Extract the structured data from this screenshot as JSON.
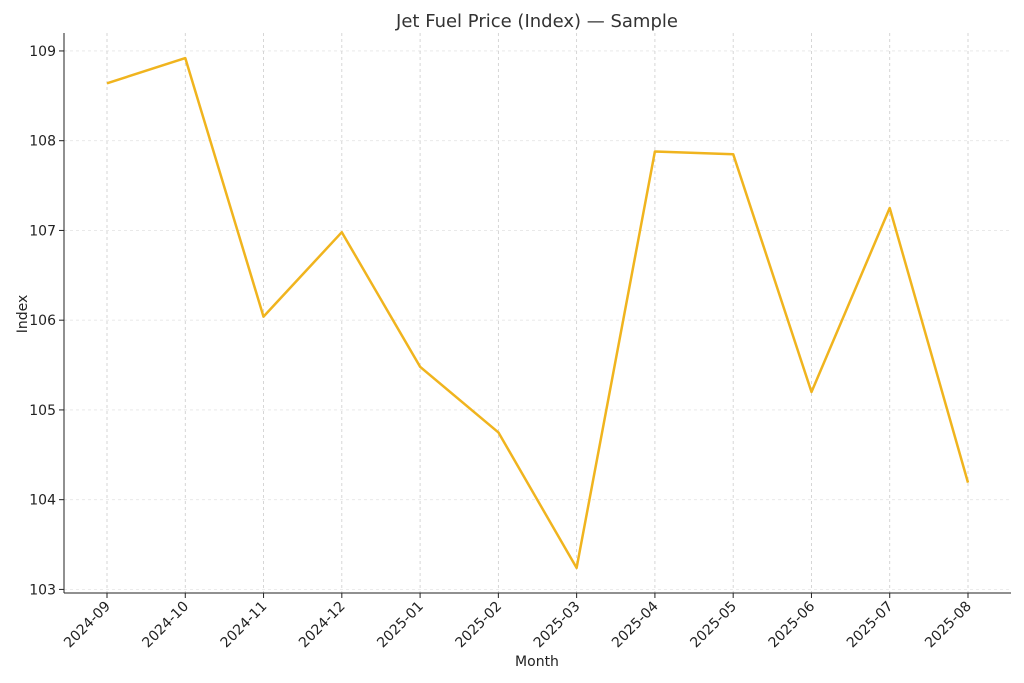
{
  "chart_data": {
    "type": "line",
    "title": "Jet Fuel Price (Index) — Sample",
    "xlabel": "Month",
    "ylabel": "Index",
    "categories": [
      "2024-09",
      "2024-10",
      "2024-11",
      "2024-12",
      "2025-01",
      "2025-02",
      "2025-03",
      "2025-04",
      "2025-05",
      "2025-06",
      "2025-07",
      "2025-08"
    ],
    "series": [
      {
        "name": "Index",
        "values": [
          108.64,
          108.92,
          106.04,
          106.98,
          105.48,
          104.75,
          103.24,
          107.88,
          107.85,
          105.2,
          107.25,
          104.19
        ]
      }
    ],
    "yticks": [
      103,
      104,
      105,
      106,
      107,
      108,
      109
    ],
    "ylim": [
      102.96,
      109.2
    ],
    "grid": true,
    "line_color": "#f0b41e",
    "grid_color": "#cccccc",
    "axis_color": "#222222"
  }
}
